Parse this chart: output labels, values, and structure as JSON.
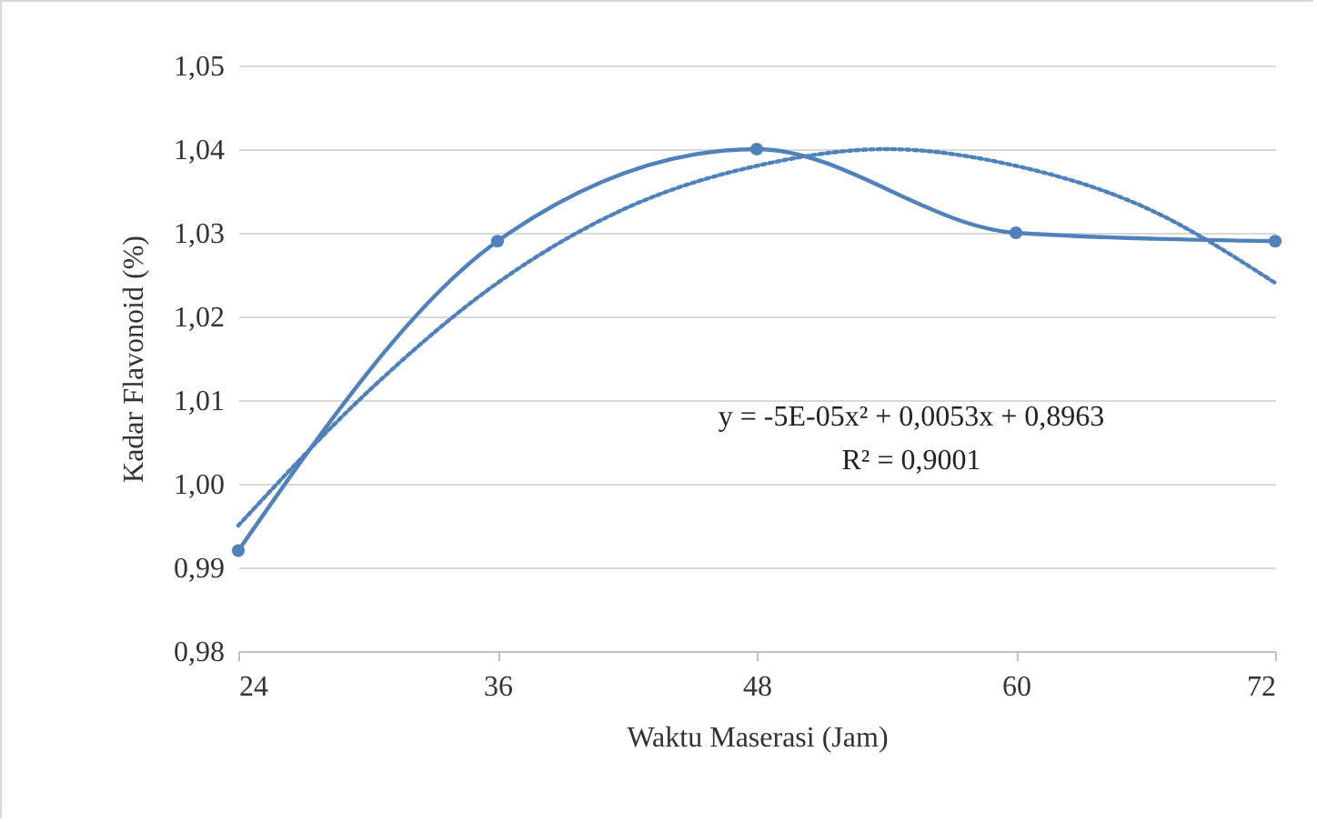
{
  "chart_data": {
    "type": "line",
    "xlabel": "Waktu Maserasi (Jam)",
    "ylabel": "Kadar Flavonoid (%)",
    "x": [
      24,
      36,
      48,
      60,
      72
    ],
    "series": [
      {
        "color": "#4f81bd",
        "marker": "circle",
        "line_style": "solid",
        "values": [
          0.992,
          1.029,
          1.04,
          1.03,
          1.029
        ]
      },
      {
        "color": "#4f81bd",
        "marker": "none",
        "line_style": "dotted",
        "x": [
          24,
          30,
          36,
          42,
          48,
          54,
          60,
          66,
          72
        ],
        "values": [
          0.995,
          1.011,
          1.024,
          1.033,
          1.038,
          1.04,
          1.038,
          1.033,
          1.024
        ]
      }
    ],
    "xlim": [
      24,
      72
    ],
    "xticks": [
      24,
      36,
      48,
      60,
      72
    ],
    "ylim": [
      0.98,
      1.05
    ],
    "yticks": [
      {
        "value": 0.98,
        "label": "0,98"
      },
      {
        "value": 0.99,
        "label": "0,99"
      },
      {
        "value": 1.0,
        "label": "1,00"
      },
      {
        "value": 1.01,
        "label": "1,01"
      },
      {
        "value": 1.02,
        "label": "1,02"
      },
      {
        "value": 1.03,
        "label": "1,03"
      },
      {
        "value": 1.04,
        "label": "1,04"
      },
      {
        "value": 1.05,
        "label": "1,05"
      }
    ],
    "grid": "y",
    "annotations": [
      "y = -5E-05x² + 0,0053x + 0,8963",
      "R² = 0,9001"
    ]
  }
}
